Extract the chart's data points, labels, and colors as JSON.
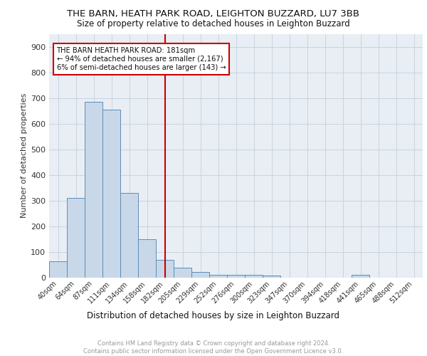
{
  "title1": "THE BARN, HEATH PARK ROAD, LEIGHTON BUZZARD, LU7 3BB",
  "title2": "Size of property relative to detached houses in Leighton Buzzard",
  "xlabel": "Distribution of detached houses by size in Leighton Buzzard",
  "ylabel": "Number of detached properties",
  "footnote": "Contains HM Land Registry data © Crown copyright and database right 2024.\nContains public sector information licensed under the Open Government Licence v3.0.",
  "bar_labels": [
    "40sqm",
    "64sqm",
    "87sqm",
    "111sqm",
    "134sqm",
    "158sqm",
    "182sqm",
    "205sqm",
    "229sqm",
    "252sqm",
    "276sqm",
    "300sqm",
    "323sqm",
    "347sqm",
    "370sqm",
    "394sqm",
    "418sqm",
    "441sqm",
    "465sqm",
    "488sqm",
    "512sqm"
  ],
  "bar_values": [
    65,
    310,
    685,
    655,
    330,
    150,
    70,
    38,
    22,
    12,
    12,
    10,
    8,
    0,
    0,
    0,
    0,
    12,
    0,
    0,
    0
  ],
  "bar_color": "#c8d8e8",
  "bar_edge_color": "#5b8db8",
  "bar_highlight_index": 6,
  "highlight_line_color": "#cc0000",
  "annotation_text": "THE BARN HEATH PARK ROAD: 181sqm\n← 94% of detached houses are smaller (2,167)\n6% of semi-detached houses are larger (143) →",
  "annotation_box_color": "#cc0000",
  "ylim": [
    0,
    950
  ],
  "yticks": [
    0,
    100,
    200,
    300,
    400,
    500,
    600,
    700,
    800,
    900
  ],
  "grid_color": "#c8d4e0",
  "bg_color": "#e8eef4",
  "title1_fontsize": 9.5,
  "title2_fontsize": 8.5,
  "xlabel_fontsize": 8.5,
  "ylabel_fontsize": 8,
  "footnote_fontsize": 6.0
}
